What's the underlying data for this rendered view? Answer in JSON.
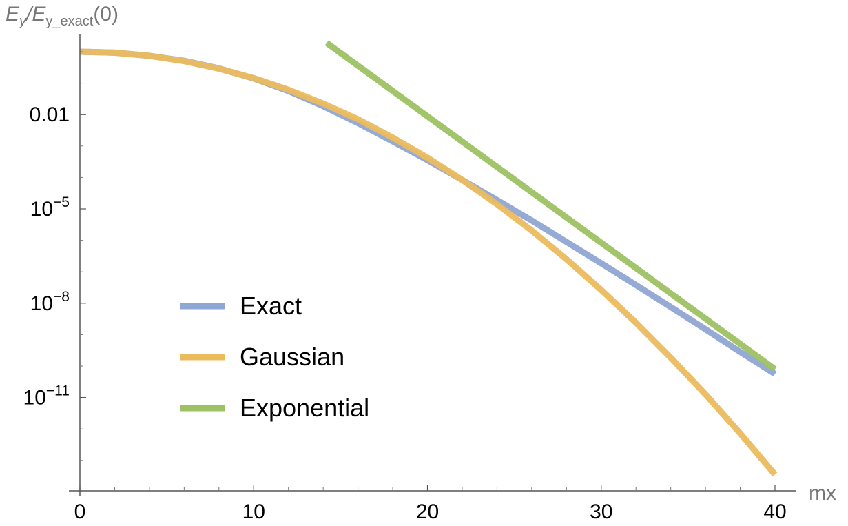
{
  "chart_data": {
    "type": "line",
    "xlabel": "mx",
    "ylabel_parts": [
      "E",
      "y",
      "/E",
      "y_exact",
      "(0)"
    ],
    "y_scale": "log10",
    "xlim": [
      0,
      40
    ],
    "ylim_log10": [
      -13.5,
      0.3
    ],
    "grid": false,
    "legend_position": "center-left",
    "x_ticks": [
      {
        "value": 0,
        "label": "0"
      },
      {
        "value": 10,
        "label": "10"
      },
      {
        "value": 20,
        "label": "20"
      },
      {
        "value": 30,
        "label": "30"
      },
      {
        "value": 40,
        "label": "40"
      }
    ],
    "y_ticks": [
      {
        "log10": -2,
        "base": "0.01",
        "exp": ""
      },
      {
        "log10": -5,
        "base": "10",
        "exp": "−5"
      },
      {
        "log10": -8,
        "base": "10",
        "exp": "−8"
      },
      {
        "log10": -11,
        "base": "10",
        "exp": "−11"
      }
    ],
    "series": [
      {
        "name": "Exact",
        "color": "#8FA7D4",
        "x": [
          0,
          2,
          4,
          6,
          8,
          10,
          12,
          14,
          16,
          18,
          20,
          22,
          24,
          26,
          28,
          30,
          32,
          34,
          36,
          38,
          40
        ],
        "log10_y": [
          0,
          -0.03,
          -0.13,
          -0.29,
          -0.53,
          -0.85,
          -1.25,
          -1.73,
          -2.27,
          -2.85,
          -3.45,
          -4.08,
          -4.72,
          -5.37,
          -6.05,
          -6.73,
          -7.42,
          -8.12,
          -8.83,
          -9.55,
          -10.25
        ]
      },
      {
        "name": "Gaussian",
        "color": "#EBBB5E",
        "x": [
          0,
          2,
          4,
          6,
          8,
          10,
          12,
          14,
          16,
          18,
          20,
          22,
          24,
          26,
          28,
          30,
          32,
          34,
          36,
          38,
          40
        ],
        "log10_y": [
          0,
          -0.03,
          -0.13,
          -0.3,
          -0.54,
          -0.84,
          -1.21,
          -1.65,
          -2.15,
          -2.73,
          -3.37,
          -4.08,
          -4.85,
          -5.69,
          -6.6,
          -7.58,
          -8.62,
          -9.73,
          -10.9,
          -12.14,
          -13.45
        ]
      },
      {
        "name": "Exponential",
        "color": "#9DC263",
        "x": [
          14.2,
          40
        ],
        "log10_y": [
          0.28,
          -10.1
        ]
      }
    ]
  }
}
